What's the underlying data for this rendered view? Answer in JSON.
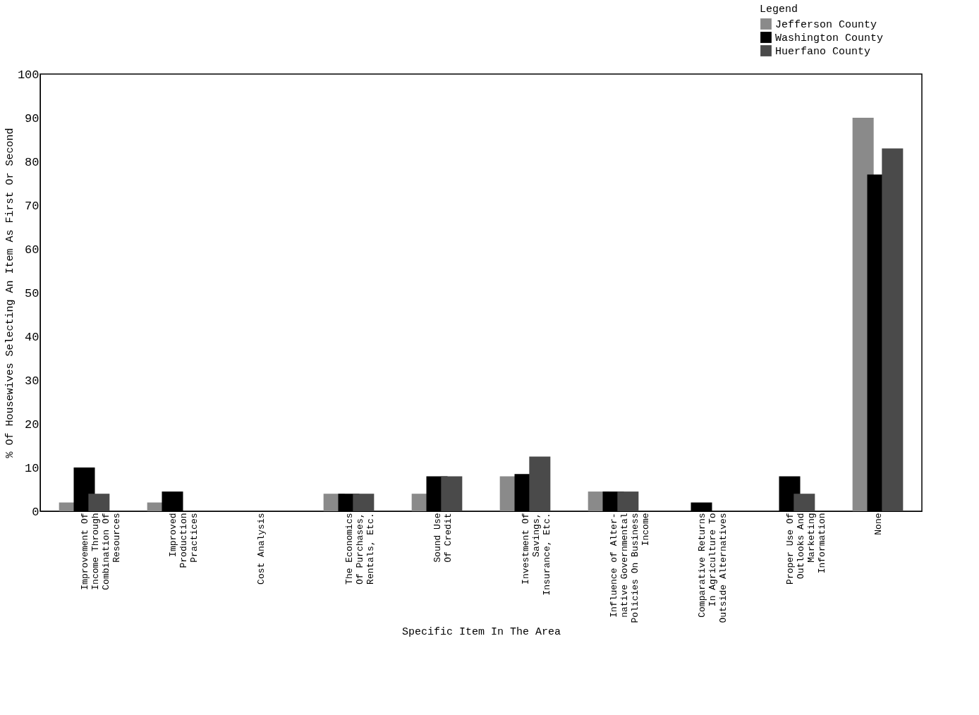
{
  "chart_data": {
    "type": "bar",
    "xlabel": "Specific Item In The Area",
    "ylabel": "% Of Housewives Selecting An Item As First Or Second",
    "legend_title": "Legend",
    "categories": [
      "Improvement Of\nIncome Through\nCombination Of\nResources",
      "Improved\nProduction\nPractices",
      "Cost Analysis",
      "The Economics\nOf Purchases,\nRentals, Etc.",
      "Sound Use\nOf Credit",
      "Investment Of\nSavings,\nInsurance, Etc.",
      "Influence of Alter-\nnative Governmental\nPolicies On Business\nIncome",
      "Comparative Returns\nIn Agriculture To\nOutside Alternatives",
      "Proper Use Of\nOutlooks And\nMarketing\nInformation",
      "None"
    ],
    "series": [
      {
        "name": "Jefferson County",
        "color": "#8a8a8a",
        "values": [
          2,
          2,
          0,
          4,
          4,
          8,
          4.5,
          0,
          0,
          90
        ]
      },
      {
        "name": "Washington County",
        "color": "#000000",
        "values": [
          10,
          4.5,
          0,
          4,
          8,
          8.5,
          4.5,
          2,
          8,
          77
        ]
      },
      {
        "name": "Huerfano County",
        "color": "#4a4a4a",
        "values": [
          4,
          0,
          0,
          4,
          8,
          12.5,
          4.5,
          0,
          4,
          83
        ]
      }
    ],
    "ylim": [
      0,
      100
    ],
    "yticks": [
      0,
      10,
      20,
      30,
      40,
      50,
      60,
      70,
      80,
      90,
      100
    ],
    "grid": false,
    "legend": "top right"
  }
}
